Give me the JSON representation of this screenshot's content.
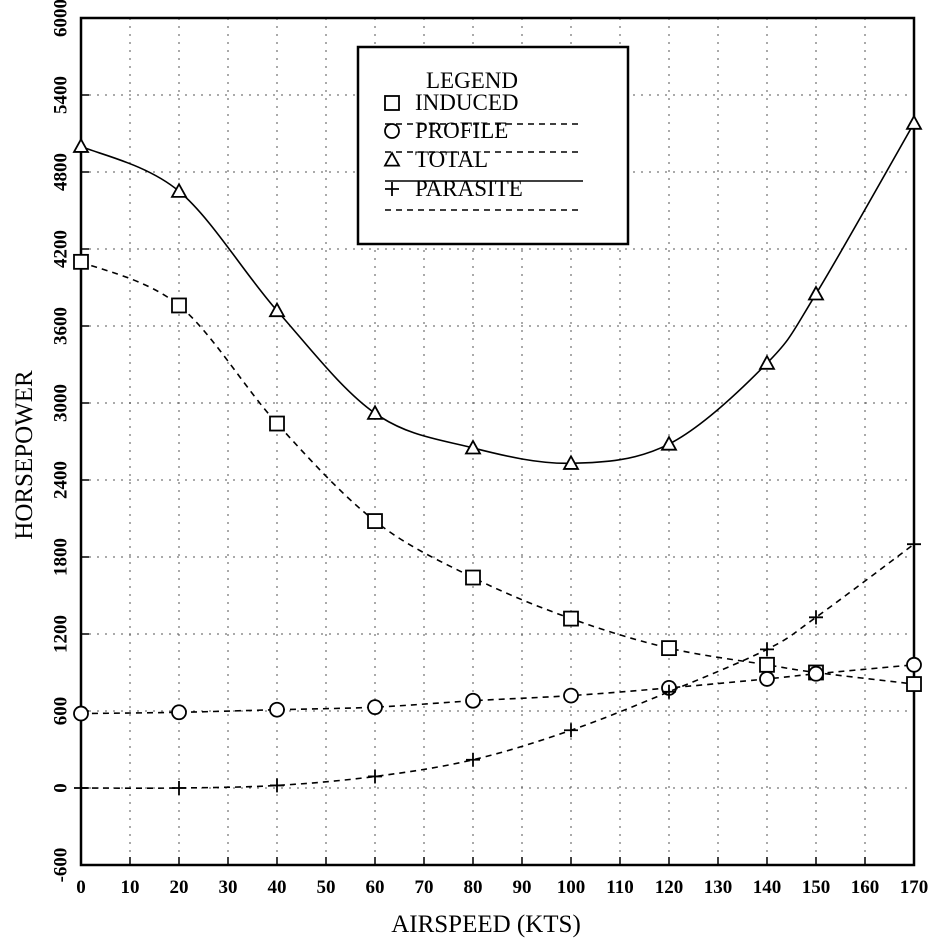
{
  "chart_data": {
    "type": "line",
    "title": "",
    "xlabel": "AIRSPEED (KTS)",
    "ylabel": "HORSEPOWER",
    "xlim": [
      0,
      170
    ],
    "ylim": [
      -600,
      6000
    ],
    "grid": true,
    "legend_position": "top-center",
    "x_tick_labels": [
      "0",
      "10",
      "20",
      "30",
      "40",
      "50",
      "60",
      "70",
      "80",
      "90",
      "100",
      "110",
      "120",
      "130",
      "140",
      "150",
      "160",
      "170"
    ],
    "y_tick_labels": [
      "-600",
      "0",
      "600",
      "1200",
      "1800",
      "2400",
      "3000",
      "3600",
      "4200",
      "4800",
      "5400",
      "6000"
    ],
    "legend_title": "LEGEND",
    "series": [
      {
        "name": "INDUCED",
        "marker": "square",
        "style": "dashed",
        "x": [
          0,
          20,
          40,
          60,
          80,
          100,
          120,
          140,
          150,
          170
        ],
        "y": [
          4100,
          3760,
          2840,
          2080,
          1640,
          1320,
          1090,
          960,
          900,
          810
        ]
      },
      {
        "name": "PROFILE",
        "marker": "circle",
        "style": "dashed",
        "x": [
          0,
          20,
          40,
          60,
          80,
          100,
          120,
          140,
          150,
          170
        ],
        "y": [
          580,
          590,
          610,
          630,
          680,
          720,
          780,
          850,
          890,
          960
        ]
      },
      {
        "name": "TOTAL",
        "marker": "triangle",
        "style": "solid",
        "x": [
          0,
          20,
          40,
          60,
          80,
          100,
          120,
          140,
          150,
          170
        ],
        "y": [
          5000,
          4650,
          3720,
          2920,
          2650,
          2530,
          2680,
          3310,
          3850,
          5180
        ]
      },
      {
        "name": "PARASITE",
        "marker": "plus",
        "style": "dashed",
        "x": [
          0,
          20,
          40,
          60,
          80,
          100,
          120,
          140,
          150,
          170
        ],
        "y": [
          0,
          0,
          20,
          90,
          220,
          450,
          750,
          1080,
          1330,
          1900
        ]
      }
    ]
  }
}
